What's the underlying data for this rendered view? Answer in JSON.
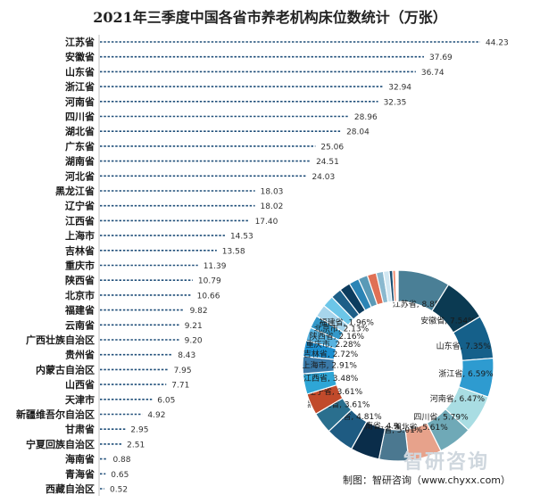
{
  "title": "2021年三季度中国各省市养老机构床位数统计（万张）",
  "credit": "制图：智研咨询（www.chyxx.com）",
  "watermark": "智研咨询",
  "colors": {
    "bar": "#1f4e79",
    "pie": [
      "#4a7f96",
      "#0b3a52",
      "#15608a",
      "#2e9bd0",
      "#a9dde3",
      "#6fa9b7",
      "#e7a28b",
      "#4b7890",
      "#0a2d4a",
      "#1e5b82",
      "#2a6f8e",
      "#c14a2b",
      "#2ea6d6",
      "#3a79a8",
      "#1c8fd0",
      "#58b3e0",
      "#3398c9",
      "#a7d5ec",
      "#6cc6e8",
      "#1d5f88",
      "#0c3c5e",
      "#2b84b5",
      "#5a9ab7",
      "#e07055",
      "#8ab9cf",
      "#d0e7f2",
      "#1b4f72",
      "#f28b6f",
      "#bcdbe8",
      "#7fb0c6",
      "#4c6e85"
    ]
  },
  "chart_data": [
    {
      "type": "bar",
      "orientation": "horizontal",
      "title": "2021年三季度中国各省市养老机构床位数统计（万张）",
      "categories": [
        "江苏省",
        "安徽省",
        "山东省",
        "浙江省",
        "河南省",
        "四川省",
        "湖北省",
        "广东省",
        "湖南省",
        "河北省",
        "黑龙江省",
        "辽宁省",
        "江西省",
        "上海市",
        "吉林省",
        "重庆市",
        "陕西省",
        "北京市",
        "福建省",
        "云南省",
        "广西壮族自治区",
        "贵州省",
        "内蒙古自治区",
        "山西省",
        "天津市",
        "新疆维吾尔自治区",
        "甘肃省",
        "宁夏回族自治区",
        "海南省",
        "青海省",
        "西藏自治区"
      ],
      "values": [
        44.23,
        37.69,
        36.74,
        32.94,
        32.35,
        28.96,
        28.04,
        25.06,
        24.51,
        24.03,
        18.03,
        18.02,
        17.4,
        14.53,
        13.58,
        11.39,
        10.79,
        10.66,
        9.82,
        9.21,
        9.2,
        8.43,
        7.95,
        7.71,
        6.05,
        4.92,
        2.95,
        2.51,
        0.88,
        0.65,
        0.52
      ],
      "value_labels": [
        "44.23",
        "37.69",
        "36.74",
        "32.94",
        "32.35",
        "28.96",
        "28.04",
        "25.06",
        "24.51",
        "24.03",
        "18.03",
        "18.02",
        "17.40",
        "14.53",
        "13.58",
        "11.39",
        "10.79",
        "10.66",
        "9.82",
        "9.21",
        "9.20",
        "8.43",
        "7.95",
        "7.71",
        "6.05",
        "4.92",
        "2.95",
        "2.51",
        "0.88",
        "0.65",
        "0.52"
      ],
      "xlim": [
        0,
        44.23
      ]
    },
    {
      "type": "pie",
      "style": "donut",
      "slices": [
        {
          "label": "江苏省, 8.85%",
          "value": 8.85
        },
        {
          "label": "安徽省, 7.54%",
          "value": 7.54
        },
        {
          "label": "山东省, 7.35%",
          "value": 7.35
        },
        {
          "label": "浙江省, 6.59%",
          "value": 6.59
        },
        {
          "label": "河南省, 6.47%",
          "value": 6.47
        },
        {
          "label": "四川省, 5.79%",
          "value": 5.79
        },
        {
          "label": "湖北省, 5.61%",
          "value": 5.61
        },
        {
          "label": "广东省, 5.01%",
          "value": 5.01
        },
        {
          "label": "湖南省, 4.9",
          "value": 4.9
        },
        {
          "label": "河北省, 4.81%",
          "value": 4.81
        },
        {
          "label": "黑龙江省, 3.61%",
          "value": 3.61
        },
        {
          "label": "辽宁省, 3.61%",
          "value": 3.61
        },
        {
          "label": "江西省, 3.48%",
          "value": 3.48
        },
        {
          "label": "上海市, 2.91%",
          "value": 2.91
        },
        {
          "label": "吉林省, 2.72%",
          "value": 2.72
        },
        {
          "label": "重庆市, 2.28%",
          "value": 2.28
        },
        {
          "label": "陕西省, 2.16%",
          "value": 2.16
        },
        {
          "label": "北京市, 2.13%",
          "value": 2.13
        },
        {
          "label": "福建省, 1.96%",
          "value": 1.96
        },
        {
          "label": "",
          "value": 1.84
        },
        {
          "label": "",
          "value": 1.84
        },
        {
          "label": "",
          "value": 1.69
        },
        {
          "label": "",
          "value": 1.59
        },
        {
          "label": "",
          "value": 1.54
        },
        {
          "label": "",
          "value": 1.21
        },
        {
          "label": "",
          "value": 0.98
        },
        {
          "label": "",
          "value": 0.59
        },
        {
          "label": "",
          "value": 0.5
        },
        {
          "label": "",
          "value": 0.18
        },
        {
          "label": "",
          "value": 0.13
        },
        {
          "label": "",
          "value": 0.1
        }
      ]
    }
  ]
}
